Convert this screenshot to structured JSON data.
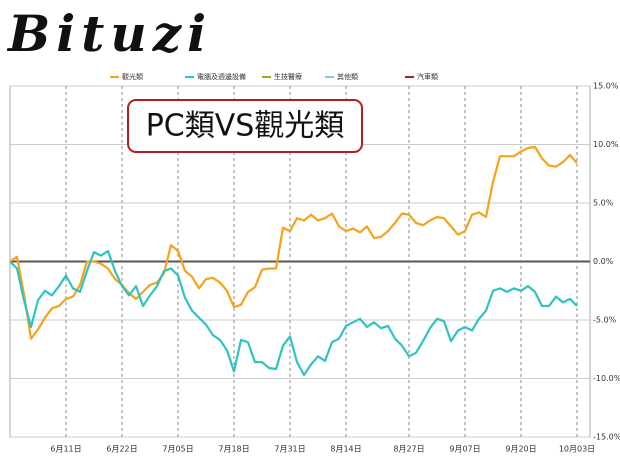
{
  "brand": "Bituzi",
  "chart_data": {
    "type": "line",
    "annotation": "PC類VS觀光類",
    "categories": [
      null,
      null,
      null,
      null,
      null,
      null,
      null,
      null,
      "6月11日",
      null,
      null,
      null,
      null,
      null,
      null,
      null,
      "6月22日",
      null,
      null,
      null,
      null,
      null,
      null,
      null,
      "7月05日",
      null,
      null,
      null,
      null,
      null,
      null,
      null,
      "7月18日",
      null,
      null,
      null,
      null,
      null,
      null,
      null,
      "7月31日",
      null,
      null,
      null,
      null,
      null,
      null,
      null,
      "8月14日",
      null,
      null,
      null,
      null,
      null,
      null,
      null,
      null,
      "8月27日",
      null,
      null,
      null,
      null,
      null,
      null,
      null,
      "9月07日",
      null,
      null,
      null,
      null,
      null,
      null,
      null,
      "9月20日",
      null,
      null,
      null,
      null,
      null,
      null,
      null,
      "10月03日"
    ],
    "series": [
      {
        "name": "觀光類",
        "color": "#f7a21b",
        "values": [
          0,
          0.4,
          -2.8,
          -6.6,
          -5.8,
          -4.8,
          -4.0,
          -3.8,
          -3.2,
          -3.0,
          -2.0,
          0.0,
          0.0,
          -0.2,
          -0.6,
          -1.5,
          -2.0,
          -2.7,
          -3.2,
          -2.6,
          -2.0,
          -1.8,
          -1.0,
          1.4,
          0.9,
          -0.8,
          -1.3,
          -2.3,
          -1.5,
          -1.4,
          -1.8,
          -2.5,
          -3.9,
          -3.7,
          -2.6,
          -2.2,
          -0.7,
          -0.6,
          -0.6,
          2.9,
          2.6,
          3.7,
          3.5,
          4.0,
          3.5,
          3.7,
          4.1,
          3.0,
          2.6,
          2.8,
          2.5,
          3.0,
          2.0,
          2.1,
          2.6,
          3.3,
          4.1,
          4.0,
          3.3,
          3.1,
          3.5,
          3.8,
          3.7,
          3.0,
          2.3,
          2.6,
          4.0,
          4.2,
          3.8,
          6.8,
          9.0,
          9.0,
          9.0,
          9.4,
          9.7,
          9.8,
          8.8,
          8.2,
          8.1,
          8.5,
          9.1,
          8.4
        ]
      },
      {
        "name": "電腦及週邊設備",
        "color": "#2fc4c0",
        "values": [
          0,
          -0.6,
          -3.3,
          -5.6,
          -3.3,
          -2.5,
          -2.9,
          -2.1,
          -1.2,
          -2.3,
          -2.6,
          -0.8,
          0.8,
          0.5,
          0.9,
          -0.8,
          -2.1,
          -2.9,
          -2.1,
          -3.8,
          -2.9,
          -2.1,
          -0.8,
          -0.6,
          -1.2,
          -3.1,
          -4.2,
          -4.8,
          -5.4,
          -6.3,
          -6.7,
          -7.6,
          -9.4,
          -6.7,
          -6.9,
          -8.6,
          -8.6,
          -9.1,
          -9.2,
          -7.2,
          -6.4,
          -8.6,
          -9.7,
          -8.8,
          -8.1,
          -8.5,
          -6.9,
          -6.6,
          -5.5,
          -5.2,
          -4.9,
          -5.6,
          -5.2,
          -5.7,
          -5.5,
          -6.6,
          -7.2,
          -8.1,
          -7.8,
          -6.8,
          -5.7,
          -4.9,
          -5.1,
          -6.8,
          -5.9,
          -5.6,
          -5.9,
          -4.9,
          -4.2,
          -2.5,
          -2.3,
          -2.6,
          -2.3,
          -2.5,
          -2.1,
          -2.6,
          -3.8,
          -3.8,
          -3.0,
          -3.5,
          -3.2,
          -3.8
        ]
      },
      {
        "name": "生技醫療",
        "color": "#9aaa1f",
        "values": [
          null,
          null,
          null,
          null,
          null,
          null,
          null,
          null,
          null,
          null,
          null,
          null,
          null,
          null,
          null,
          null,
          null,
          null,
          null,
          null,
          null,
          null,
          null,
          null,
          null,
          null,
          null,
          null,
          null,
          null,
          null,
          null,
          null,
          null,
          null,
          null,
          null,
          null,
          null,
          null,
          null,
          null,
          null,
          null,
          null,
          null,
          null,
          null,
          null,
          null,
          null,
          null,
          null,
          null,
          null,
          null,
          null,
          null,
          null,
          null,
          null,
          null,
          null,
          null,
          null,
          null,
          null,
          null,
          null,
          null,
          null,
          null,
          null,
          null,
          null,
          null,
          null,
          null,
          null,
          null,
          null,
          null
        ]
      },
      {
        "name": "其他類",
        "color": "#7ec8e8",
        "values": [
          null,
          null,
          null,
          null,
          null,
          null,
          null,
          null,
          null,
          null,
          null,
          null,
          null,
          null,
          null,
          null,
          null,
          null,
          null,
          null,
          null,
          null,
          null,
          null,
          null,
          null,
          null,
          null,
          null,
          null,
          null,
          null,
          null,
          null,
          null,
          null,
          null,
          null,
          null,
          null,
          null,
          null,
          null,
          null,
          null,
          null,
          null,
          null,
          null,
          null,
          null,
          null,
          null,
          null,
          null,
          null,
          null,
          null,
          null,
          null,
          null,
          null,
          null,
          null,
          null,
          null,
          null,
          null,
          null,
          null,
          null,
          null,
          null,
          null,
          null,
          null,
          null,
          null,
          null,
          null,
          null,
          null
        ]
      },
      {
        "name": "汽車類",
        "color": "#a3222a",
        "values": [
          null,
          null,
          null,
          null,
          null,
          null,
          null,
          null,
          null,
          null,
          null,
          null,
          null,
          null,
          null,
          null,
          null,
          null,
          null,
          null,
          null,
          null,
          null,
          null,
          null,
          null,
          null,
          null,
          null,
          null,
          null,
          null,
          null,
          null,
          null,
          null,
          null,
          null,
          null,
          null,
          null,
          null,
          null,
          null,
          null,
          null,
          null,
          null,
          null,
          null,
          null,
          null,
          null,
          null,
          null,
          null,
          null,
          null,
          null,
          null,
          null,
          null,
          null,
          null,
          null,
          null,
          null,
          null,
          null,
          null,
          null,
          null,
          null,
          null,
          null,
          null,
          null,
          null,
          null,
          null,
          null,
          null
        ]
      }
    ],
    "ylim": [
      -15,
      15
    ],
    "yticks": [
      {
        "value": -15,
        "label": "-15.0%"
      },
      {
        "value": -10,
        "label": "-10.0%"
      },
      {
        "value": -5,
        "label": "-5.0%"
      },
      {
        "value": 0,
        "label": "0.0%"
      },
      {
        "value": 5,
        "label": "5.0%"
      },
      {
        "value": 10,
        "label": "10.0%"
      },
      {
        "value": 15,
        "label": "15.0%"
      }
    ],
    "grid": true
  }
}
